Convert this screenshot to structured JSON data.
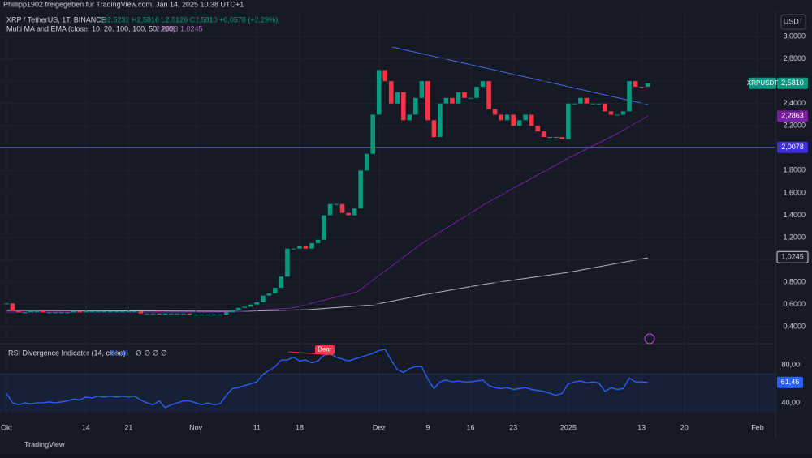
{
  "header": {
    "shared": "Phillipp1902 freigegeben für TradingView.com, Jan 14, 2025 10:38 UTC+1",
    "symbol": "XRP / TetherUS, 1T, BINANCE",
    "ohlc": "O2,5232 H2,5816 L2,5126 C2,5810 +0,0578 (+2,29%)",
    "ma": "Multi MA and EMA (close, 10, 20, 100, 100, 50, 200)",
    "ma_values": "2,2863  1,0245",
    "currency": "USDT"
  },
  "footer": {
    "brand": "TradingView"
  },
  "chart_data": {
    "type": "candlestick",
    "categories": [
      "Okt",
      null,
      null,
      null,
      null,
      null,
      null,
      null,
      null,
      null,
      null,
      null,
      null,
      "14",
      null,
      null,
      null,
      null,
      null,
      null,
      "21",
      null,
      null,
      null,
      null,
      null,
      null,
      null,
      null,
      null,
      null,
      "Nov",
      null,
      null,
      null,
      null,
      null,
      null,
      null,
      null,
      null,
      "11",
      null,
      null,
      null,
      null,
      null,
      null,
      "18",
      null,
      null,
      null,
      null,
      null,
      null,
      null,
      null,
      null,
      null,
      null,
      null,
      "Dez",
      null,
      null,
      null,
      null,
      null,
      null,
      null,
      "9",
      null,
      null,
      null,
      null,
      null,
      null,
      "16",
      null,
      null,
      null,
      null,
      null,
      null,
      "23",
      null,
      null,
      null,
      null,
      null,
      null,
      null,
      null,
      "2025",
      null,
      null,
      null,
      null,
      null,
      null,
      null,
      null,
      null,
      null,
      null,
      "13",
      null,
      null,
      null,
      null,
      null,
      null,
      "20",
      null,
      null,
      null,
      null,
      null,
      null,
      null,
      null,
      null,
      null,
      null,
      "Feb"
    ],
    "series": [
      {
        "name": "XRPUSDT",
        "up_color": "#089981",
        "down_color": "#f23645",
        "values": [
          0.61,
          0.54,
          0.53,
          0.53,
          0.54,
          0.54,
          0.53,
          0.53,
          0.53,
          0.53,
          0.53,
          0.54,
          0.53,
          0.54,
          0.54,
          0.54,
          0.54,
          0.54,
          0.54,
          0.54,
          0.54,
          0.54,
          0.52,
          0.52,
          0.52,
          0.51,
          0.52,
          0.52,
          0.52,
          0.52,
          0.51,
          0.51,
          0.51,
          0.51,
          0.51,
          0.51,
          0.53,
          0.55,
          0.57,
          0.58,
          0.6,
          0.62,
          0.68,
          0.7,
          0.75,
          0.85,
          1.1,
          1.1,
          1.12,
          1.1,
          1.15,
          1.18,
          1.4,
          1.5,
          1.5,
          1.42,
          1.4,
          1.46,
          1.8,
          1.95,
          2.3,
          2.7,
          2.6,
          2.4,
          2.5,
          2.25,
          2.3,
          2.45,
          2.6,
          2.25,
          2.1,
          2.4,
          2.45,
          2.4,
          2.5,
          2.45,
          2.45,
          2.55,
          2.6,
          2.35,
          2.3,
          2.25,
          2.3,
          2.2,
          2.25,
          2.3,
          2.2,
          2.15,
          2.1,
          2.1,
          2.1,
          2.08,
          2.4,
          2.4,
          2.45,
          2.4,
          2.4,
          2.4,
          2.33,
          2.3,
          2.3,
          2.33,
          2.6,
          2.55,
          2.55,
          2.581,
          null,
          null,
          null,
          null,
          null,
          null,
          null,
          null,
          null,
          null,
          null,
          null,
          null,
          null,
          null,
          null,
          null,
          null
        ]
      }
    ],
    "ylim": [
      0.3,
      3.2
    ],
    "yticks": [
      {
        "value": 3.0,
        "label": "3,0000"
      },
      {
        "value": 2.8,
        "label": "2,8000"
      },
      {
        "value": 2.6,
        "label": "2,6000"
      },
      {
        "value": 2.4,
        "label": "2,4000"
      },
      {
        "value": 2.2,
        "label": "2,2000"
      },
      {
        "value": 2.0,
        "label": "2,0000"
      },
      {
        "value": 1.8,
        "label": "1,8000"
      },
      {
        "value": 1.6,
        "label": "1,6000"
      },
      {
        "value": 1.4,
        "label": "1,4000"
      },
      {
        "value": 1.2,
        "label": "1,2000"
      },
      {
        "value": 1.0,
        "label": "1,0000"
      },
      {
        "value": 0.8,
        "label": "0,8000"
      },
      {
        "value": 0.6,
        "label": "0,6000"
      },
      {
        "value": 0.4,
        "label": "0,4000"
      }
    ],
    "price_labels": [
      {
        "value": 2.581,
        "label": "2,5810",
        "name": "XRPUSDT",
        "color": "#089981"
      },
      {
        "value": 2.2863,
        "label": "2,2863",
        "color": "#7b1fa2"
      },
      {
        "value": 2.0078,
        "label": "2,0078",
        "color": "#3f2fd9"
      },
      {
        "value": 1.0245,
        "label": "1,0245",
        "color": "#d1d4dc"
      }
    ],
    "hline": {
      "value": 2.0078,
      "color": "#4a3cf0"
    },
    "rsi": {
      "title": "RSI Divergence Indicator (14, close)",
      "readout": "61,46",
      "flags": "∅ ∅ ∅ ∅",
      "annotation": "Bear",
      "color": "#2962ff",
      "ylim": [
        24,
        100
      ],
      "yticks": [
        {
          "value": 80,
          "label": "80,00"
        },
        {
          "value": 40,
          "label": "40,00"
        }
      ],
      "band": [
        30,
        70
      ],
      "last": {
        "value": 61.46,
        "label": "61,46"
      },
      "values": [
        50,
        40,
        38,
        40,
        39,
        40,
        40,
        41,
        40,
        41,
        42,
        44,
        43,
        46,
        45,
        47,
        46,
        47,
        46,
        47,
        46,
        47,
        43,
        40,
        38,
        42,
        35,
        38,
        40,
        42,
        42,
        40,
        38,
        40,
        38,
        39,
        48,
        55,
        56,
        58,
        60,
        62,
        70,
        74,
        78,
        85,
        85,
        88,
        84,
        85,
        82,
        84,
        90,
        92,
        88,
        86,
        84,
        86,
        88,
        90,
        92,
        95,
        96,
        85,
        75,
        72,
        76,
        78,
        78,
        65,
        55,
        62,
        64,
        62,
        63,
        62,
        62,
        63,
        64,
        58,
        56,
        55,
        56,
        54,
        55,
        56,
        54,
        53,
        52,
        50,
        48,
        50,
        60,
        62,
        63,
        61,
        62,
        61,
        52,
        56,
        54,
        55,
        66,
        62,
        62,
        61.46,
        null,
        null,
        null,
        null,
        null,
        null,
        null,
        null,
        null,
        null,
        null,
        null,
        null,
        null,
        null,
        null,
        null,
        null
      ]
    }
  }
}
